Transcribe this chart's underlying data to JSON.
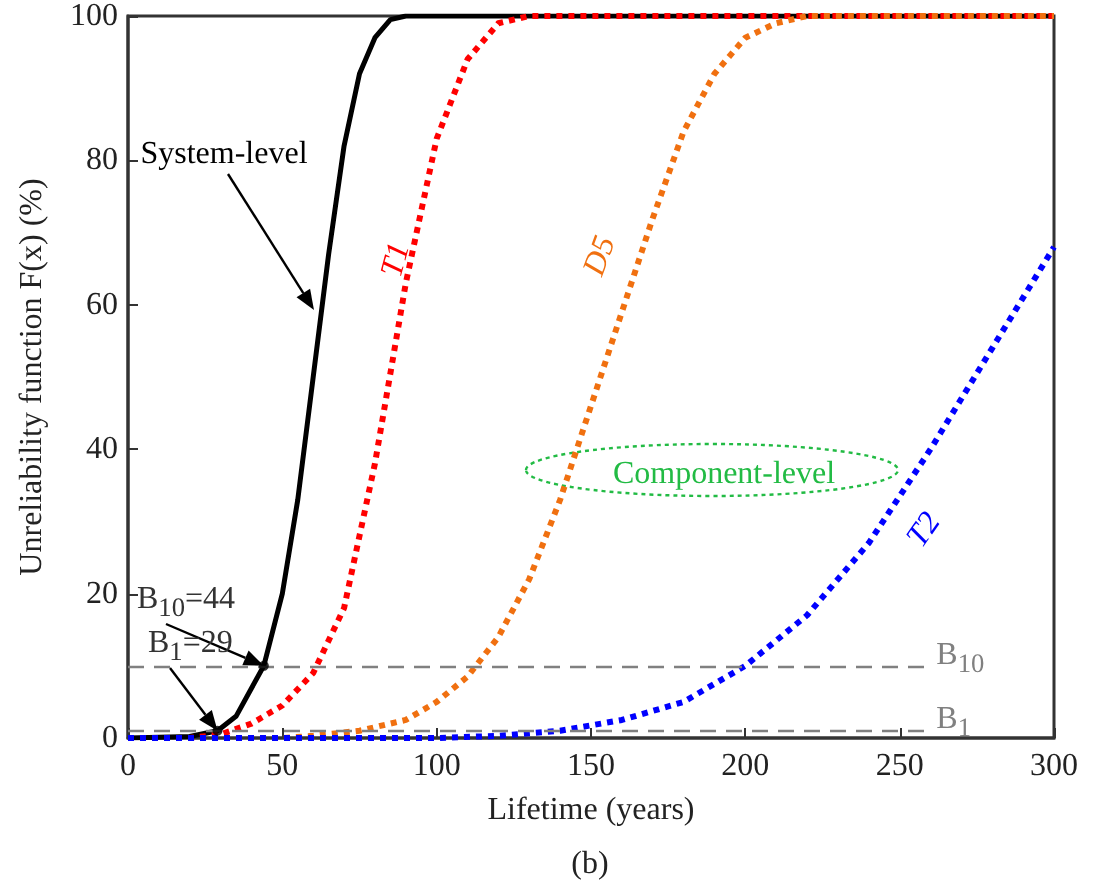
{
  "chart_data": {
    "type": "line",
    "xlabel": "Lifetime (years)",
    "ylabel": "Unreliability function F(x) (%)",
    "xlim": [
      0,
      300
    ],
    "xticks": [
      0,
      50,
      100,
      150,
      200,
      250,
      300
    ],
    "ylim": [
      0,
      100
    ],
    "yticks": [
      0,
      20,
      40,
      60,
      80,
      100
    ],
    "grid": false,
    "marker": "none",
    "series": [
      {
        "name": "System-level",
        "color": "#000000",
        "line_style": "solid",
        "x": [
          0,
          20,
          29,
          35,
          44,
          50,
          55,
          60,
          65,
          70,
          75,
          80,
          85,
          90,
          300
        ],
        "values": [
          0,
          0.2,
          1,
          3,
          10,
          20,
          33,
          50,
          67,
          82,
          92,
          97,
          99.5,
          100,
          100
        ]
      },
      {
        "name": "T1",
        "color": "#ff0000",
        "line_style": "dotted",
        "x": [
          0,
          20,
          30,
          40,
          50,
          60,
          70,
          80,
          90,
          100,
          110,
          120,
          130,
          300
        ],
        "values": [
          0,
          0,
          0.5,
          2,
          4.5,
          9,
          18,
          38,
          63,
          83,
          94,
          99,
          100,
          100
        ]
      },
      {
        "name": "D5",
        "color": "#f07010",
        "line_style": "dotted",
        "x": [
          0,
          50,
          60,
          75,
          90,
          100,
          110,
          120,
          130,
          140,
          150,
          160,
          170,
          180,
          190,
          200,
          210,
          220,
          300
        ],
        "values": [
          0,
          0,
          0.3,
          1,
          2.5,
          5,
          8.5,
          14,
          22,
          33,
          46,
          59,
          72,
          84,
          92,
          97,
          99,
          100,
          100
        ]
      },
      {
        "name": "T2",
        "color": "#0000ff",
        "line_style": "dotted",
        "x": [
          0,
          100,
          120,
          140,
          160,
          180,
          200,
          220,
          240,
          260,
          280,
          300
        ],
        "values": [
          0,
          0,
          0.3,
          1,
          2.5,
          5,
          10,
          17,
          27,
          40,
          54,
          68
        ]
      },
      {
        "type": "scatter",
        "marker": "circle",
        "color": "#000000",
        "x": [
          29,
          44
        ],
        "values": [
          1,
          10
        ]
      }
    ],
    "ref_lines": [
      {
        "axis": "y",
        "value": 10,
        "label": "B$_{10}$",
        "color": "#808080",
        "line_style": "dashed"
      },
      {
        "axis": "y",
        "value": 1,
        "label": "B$_{1}$",
        "color": "#808080",
        "line_style": "dashed"
      }
    ],
    "annotations": [
      {
        "text": "B$_{10}$=44",
        "x": 44,
        "y": 10
      },
      {
        "text": "B$_{1}$=29",
        "x": 29,
        "y": 1
      },
      "Component-level",
      "(b)"
    ]
  }
}
